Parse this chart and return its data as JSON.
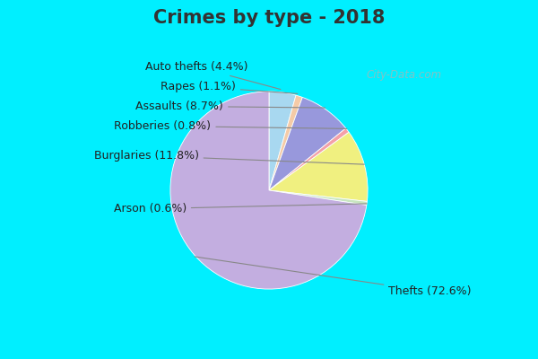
{
  "title": "Crimes by type - 2018",
  "title_fontsize": 15,
  "title_fontweight": "bold",
  "slices": [
    {
      "label": "Thefts",
      "pct": 72.6,
      "color": "#C3AEE0"
    },
    {
      "label": "Arson",
      "pct": 0.6,
      "color": "#C8E6C0"
    },
    {
      "label": "Burglaries",
      "pct": 11.8,
      "color": "#F0F080"
    },
    {
      "label": "Robberies",
      "pct": 0.8,
      "color": "#F4A0A8"
    },
    {
      "label": "Assaults",
      "pct": 8.7,
      "color": "#9898DC"
    },
    {
      "label": "Rapes",
      "pct": 1.1,
      "color": "#F5CBA7"
    },
    {
      "label": "Auto thefts",
      "pct": 4.4,
      "color": "#A8D8F0"
    }
  ],
  "wedge_order": [
    "Auto thefts",
    "Rapes",
    "Assaults",
    "Robberies",
    "Burglaries",
    "Arson",
    "Thefts"
  ],
  "bg_cyan": "#00EFFF",
  "bg_chart": "#D8EED8",
  "title_color": "#333333",
  "watermark": "City-Data.com",
  "label_fontsize": 9,
  "startangle": 90
}
